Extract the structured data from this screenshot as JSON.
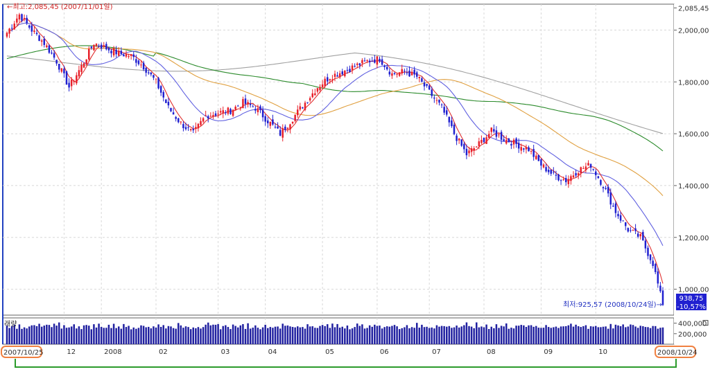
{
  "chart_data": {
    "type": "candlestick",
    "price_axis": {
      "ticks": [
        1000,
        1200,
        1400,
        1600,
        1800,
        2000,
        2085.45
      ],
      "tick_labels": [
        "1,000,00",
        "1,200,00",
        "1,400,00",
        "1,600,00",
        "1,800,00",
        "2,000,00",
        "2,085,45"
      ],
      "range": [
        900,
        2100
      ]
    },
    "volume_axis": {
      "ticks": [
        200000,
        400000
      ],
      "tick_labels": [
        "200,000",
        "400,000"
      ],
      "range": [
        0,
        500000
      ]
    },
    "volume_label": "래량",
    "x_tick_labels": [
      "2007/10/25",
      "12",
      "2008",
      "02",
      "03",
      "04",
      "05",
      "06",
      "07",
      "08",
      "09",
      "10",
      "2008/10/24"
    ],
    "annotations": {
      "high": "←최고:2,085,45 (2007/11/01일)",
      "low": "최저:925,57 (2008/10/24일)→"
    },
    "last_price": {
      "value": "938,75",
      "change": "(-10,57%)"
    },
    "colors": {
      "up": "#e8202a",
      "down": "#2020d0",
      "ma5": "#e03030",
      "ma20": "#6060e0",
      "ma60": "#e0a040",
      "ma120": "#2a8a2a",
      "ma240": "#a0a0a0",
      "volume": "#2020a0",
      "highlight": "#f08040",
      "bracket": "#2a9a2a"
    },
    "close_path": [
      [
        0,
        1990
      ],
      [
        5,
        2060
      ],
      [
        10,
        2000
      ],
      [
        15,
        1950
      ],
      [
        20,
        1880
      ],
      [
        25,
        1780
      ],
      [
        30,
        1860
      ],
      [
        35,
        1950
      ],
      [
        40,
        1930
      ],
      [
        45,
        1910
      ],
      [
        50,
        1900
      ],
      [
        55,
        1860
      ],
      [
        60,
        1800
      ],
      [
        65,
        1700
      ],
      [
        70,
        1640
      ],
      [
        75,
        1600
      ],
      [
        80,
        1670
      ],
      [
        85,
        1680
      ],
      [
        90,
        1690
      ],
      [
        95,
        1720
      ],
      [
        100,
        1700
      ],
      [
        105,
        1650
      ],
      [
        110,
        1600
      ],
      [
        115,
        1660
      ],
      [
        120,
        1720
      ],
      [
        125,
        1780
      ],
      [
        130,
        1820
      ],
      [
        135,
        1840
      ],
      [
        140,
        1860
      ],
      [
        145,
        1880
      ],
      [
        150,
        1890
      ],
      [
        155,
        1830
      ],
      [
        160,
        1840
      ],
      [
        165,
        1820
      ],
      [
        170,
        1760
      ],
      [
        175,
        1700
      ],
      [
        180,
        1600
      ],
      [
        185,
        1520
      ],
      [
        190,
        1560
      ],
      [
        195,
        1610
      ],
      [
        200,
        1580
      ],
      [
        205,
        1560
      ],
      [
        210,
        1540
      ],
      [
        215,
        1480
      ],
      [
        220,
        1440
      ],
      [
        225,
        1420
      ],
      [
        230,
        1460
      ],
      [
        235,
        1480
      ],
      [
        240,
        1400
      ],
      [
        245,
        1300
      ],
      [
        250,
        1230
      ],
      [
        255,
        1200
      ],
      [
        260,
        1100
      ],
      [
        264,
        939
      ]
    ],
    "volume_level": [
      0.62,
      0.78,
      0.55,
      0.7
    ]
  }
}
